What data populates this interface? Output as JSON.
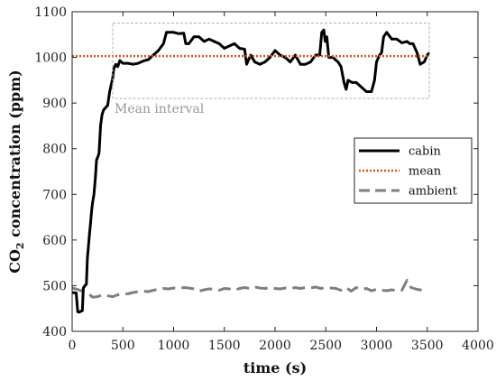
{
  "chart_data": {
    "type": "line",
    "xlabel": "time (s)",
    "ylabel": {
      "prefix": "CO",
      "subscript": "2",
      "suffix": " concentration (ppm)"
    },
    "xlim": [
      0,
      4000
    ],
    "ylim": [
      400,
      1100
    ],
    "x_ticks": [
      0,
      500,
      1000,
      1500,
      2000,
      2500,
      3000,
      3500,
      4000
    ],
    "y_ticks": [
      400,
      500,
      600,
      700,
      800,
      900,
      1000,
      1100
    ],
    "grid": false,
    "legend_position": "right",
    "annotation": {
      "text": "Mean interval",
      "x_range": [
        400,
        3520
      ],
      "y_range": [
        910,
        1075
      ]
    },
    "series": [
      {
        "name": "cabin",
        "style": "solid",
        "color": "#000000",
        "points": [
          [
            0,
            485
          ],
          [
            40,
            484
          ],
          [
            55,
            443
          ],
          [
            70,
            442
          ],
          [
            85,
            444
          ],
          [
            100,
            445
          ],
          [
            110,
            495
          ],
          [
            125,
            500
          ],
          [
            140,
            503
          ],
          [
            150,
            560
          ],
          [
            160,
            585
          ],
          [
            170,
            610
          ],
          [
            180,
            635
          ],
          [
            190,
            660
          ],
          [
            200,
            680
          ],
          [
            215,
            700
          ],
          [
            230,
            740
          ],
          [
            240,
            775
          ],
          [
            250,
            780
          ],
          [
            265,
            790
          ],
          [
            280,
            850
          ],
          [
            295,
            875
          ],
          [
            310,
            885
          ],
          [
            330,
            890
          ],
          [
            350,
            895
          ],
          [
            370,
            925
          ],
          [
            385,
            940
          ],
          [
            400,
            955
          ],
          [
            410,
            975
          ],
          [
            430,
            985
          ],
          [
            450,
            980
          ],
          [
            470,
            993
          ],
          [
            500,
            987
          ],
          [
            550,
            987
          ],
          [
            600,
            985
          ],
          [
            650,
            987
          ],
          [
            700,
            992
          ],
          [
            750,
            995
          ],
          [
            800,
            1005
          ],
          [
            850,
            1015
          ],
          [
            900,
            1030
          ],
          [
            930,
            1055
          ],
          [
            1000,
            1055
          ],
          [
            1050,
            1052
          ],
          [
            1100,
            1053
          ],
          [
            1120,
            1030
          ],
          [
            1150,
            1030
          ],
          [
            1200,
            1045
          ],
          [
            1250,
            1045
          ],
          [
            1300,
            1035
          ],
          [
            1350,
            1040
          ],
          [
            1400,
            1035
          ],
          [
            1450,
            1030
          ],
          [
            1500,
            1020
          ],
          [
            1550,
            1025
          ],
          [
            1600,
            1030
          ],
          [
            1650,
            1020
          ],
          [
            1700,
            1018
          ],
          [
            1720,
            985
          ],
          [
            1760,
            1005
          ],
          [
            1800,
            990
          ],
          [
            1850,
            985
          ],
          [
            1900,
            990
          ],
          [
            1950,
            1000
          ],
          [
            2000,
            1015
          ],
          [
            2050,
            1005
          ],
          [
            2100,
            1000
          ],
          [
            2150,
            990
          ],
          [
            2200,
            1005
          ],
          [
            2250,
            985
          ],
          [
            2300,
            985
          ],
          [
            2350,
            990
          ],
          [
            2400,
            1005
          ],
          [
            2440,
            1005
          ],
          [
            2460,
            1055
          ],
          [
            2480,
            1060
          ],
          [
            2495,
            1035
          ],
          [
            2510,
            1045
          ],
          [
            2530,
            1000
          ],
          [
            2570,
            1000
          ],
          [
            2620,
            990
          ],
          [
            2650,
            980
          ],
          [
            2680,
            945
          ],
          [
            2700,
            930
          ],
          [
            2720,
            950
          ],
          [
            2760,
            945
          ],
          [
            2800,
            945
          ],
          [
            2850,
            935
          ],
          [
            2900,
            925
          ],
          [
            2950,
            925
          ],
          [
            2980,
            950
          ],
          [
            3000,
            990
          ],
          [
            3030,
            1005
          ],
          [
            3050,
            1010
          ],
          [
            3070,
            1045
          ],
          [
            3100,
            1055
          ],
          [
            3150,
            1040
          ],
          [
            3200,
            1040
          ],
          [
            3250,
            1032
          ],
          [
            3300,
            1035
          ],
          [
            3330,
            1030
          ],
          [
            3360,
            1030
          ],
          [
            3400,
            1010
          ],
          [
            3430,
            985
          ],
          [
            3470,
            990
          ],
          [
            3500,
            1005
          ],
          [
            3520,
            1010
          ]
        ]
      },
      {
        "name": "mean",
        "style": "dotted",
        "color": "#d95319",
        "points": [
          [
            0,
            1003
          ],
          [
            3520,
            1003
          ]
        ]
      },
      {
        "name": "ambient",
        "style": "dashed",
        "color": "#7f7f7f",
        "points": [
          [
            0,
            495
          ],
          [
            50,
            492
          ],
          [
            100,
            488
          ],
          [
            150,
            485
          ],
          [
            200,
            475
          ],
          [
            250,
            476
          ],
          [
            300,
            480
          ],
          [
            350,
            478
          ],
          [
            400,
            476
          ],
          [
            450,
            480
          ],
          [
            500,
            483
          ],
          [
            550,
            482
          ],
          [
            600,
            485
          ],
          [
            650,
            487
          ],
          [
            700,
            488
          ],
          [
            750,
            487
          ],
          [
            800,
            490
          ],
          [
            850,
            492
          ],
          [
            900,
            494
          ],
          [
            950,
            493
          ],
          [
            1000,
            495
          ],
          [
            1050,
            494
          ],
          [
            1100,
            496
          ],
          [
            1150,
            495
          ],
          [
            1200,
            493
          ],
          [
            1250,
            488
          ],
          [
            1300,
            491
          ],
          [
            1350,
            493
          ],
          [
            1400,
            492
          ],
          [
            1450,
            490
          ],
          [
            1500,
            494
          ],
          [
            1550,
            493
          ],
          [
            1600,
            490
          ],
          [
            1650,
            494
          ],
          [
            1700,
            496
          ],
          [
            1750,
            494
          ],
          [
            1800,
            497
          ],
          [
            1850,
            495
          ],
          [
            1900,
            494
          ],
          [
            1950,
            496
          ],
          [
            2000,
            494
          ],
          [
            2050,
            493
          ],
          [
            2100,
            495
          ],
          [
            2150,
            494
          ],
          [
            2200,
            496
          ],
          [
            2250,
            494
          ],
          [
            2300,
            496
          ],
          [
            2350,
            495
          ],
          [
            2400,
            497
          ],
          [
            2450,
            494
          ],
          [
            2500,
            496
          ],
          [
            2550,
            495
          ],
          [
            2600,
            494
          ],
          [
            2650,
            490
          ],
          [
            2700,
            496
          ],
          [
            2750,
            488
          ],
          [
            2800,
            496
          ],
          [
            2850,
            492
          ],
          [
            2900,
            494
          ],
          [
            2950,
            489
          ],
          [
            3000,
            492
          ],
          [
            3050,
            490
          ],
          [
            3100,
            489
          ],
          [
            3150,
            491
          ],
          [
            3200,
            489
          ],
          [
            3250,
            490
          ],
          [
            3300,
            512
          ],
          [
            3340,
            496
          ],
          [
            3400,
            492
          ],
          [
            3450,
            490
          ],
          [
            3500,
            490
          ]
        ]
      }
    ]
  }
}
